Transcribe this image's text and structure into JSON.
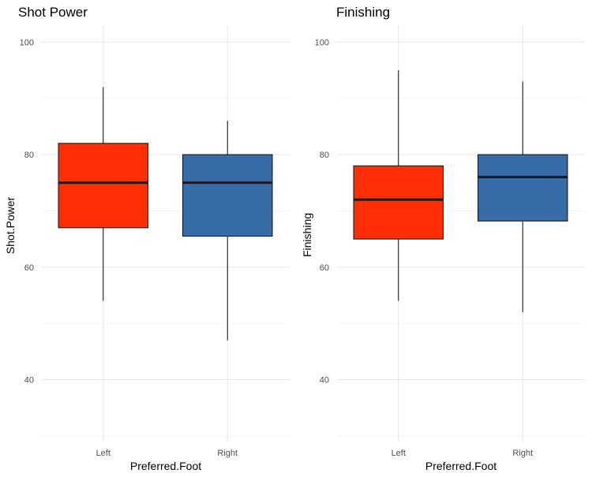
{
  "chart_data": [
    {
      "type": "boxplot",
      "title": "Shot Power",
      "xlabel": "Preferred.Foot",
      "ylabel": "Shot.Power",
      "ylim": [
        29,
        103
      ],
      "yticks": [
        40,
        60,
        80,
        100
      ],
      "grid": true,
      "legend": "none",
      "categories": [
        "Left",
        "Right"
      ],
      "boxes": [
        {
          "category": "Left",
          "min": 54,
          "q1": 67,
          "median": 75,
          "q3": 82,
          "max": 92,
          "color": "#ff2e04"
        },
        {
          "category": "Right",
          "min": 47,
          "q1": 65.5,
          "median": 75,
          "q3": 80,
          "max": 86,
          "color": "#376ca8"
        }
      ]
    },
    {
      "type": "boxplot",
      "title": "Finishing",
      "xlabel": "Preferred.Foot",
      "ylabel": "Finishing",
      "ylim": [
        29,
        103
      ],
      "yticks": [
        40,
        60,
        80,
        100
      ],
      "grid": true,
      "legend": "none",
      "categories": [
        "Left",
        "Right"
      ],
      "boxes": [
        {
          "category": "Left",
          "min": 54,
          "q1": 65,
          "median": 72,
          "q3": 78,
          "max": 95,
          "color": "#ff2e04"
        },
        {
          "category": "Right",
          "min": 52,
          "q1": 68.2,
          "median": 76,
          "q3": 80,
          "max": 93,
          "color": "#376ca8"
        }
      ]
    }
  ]
}
